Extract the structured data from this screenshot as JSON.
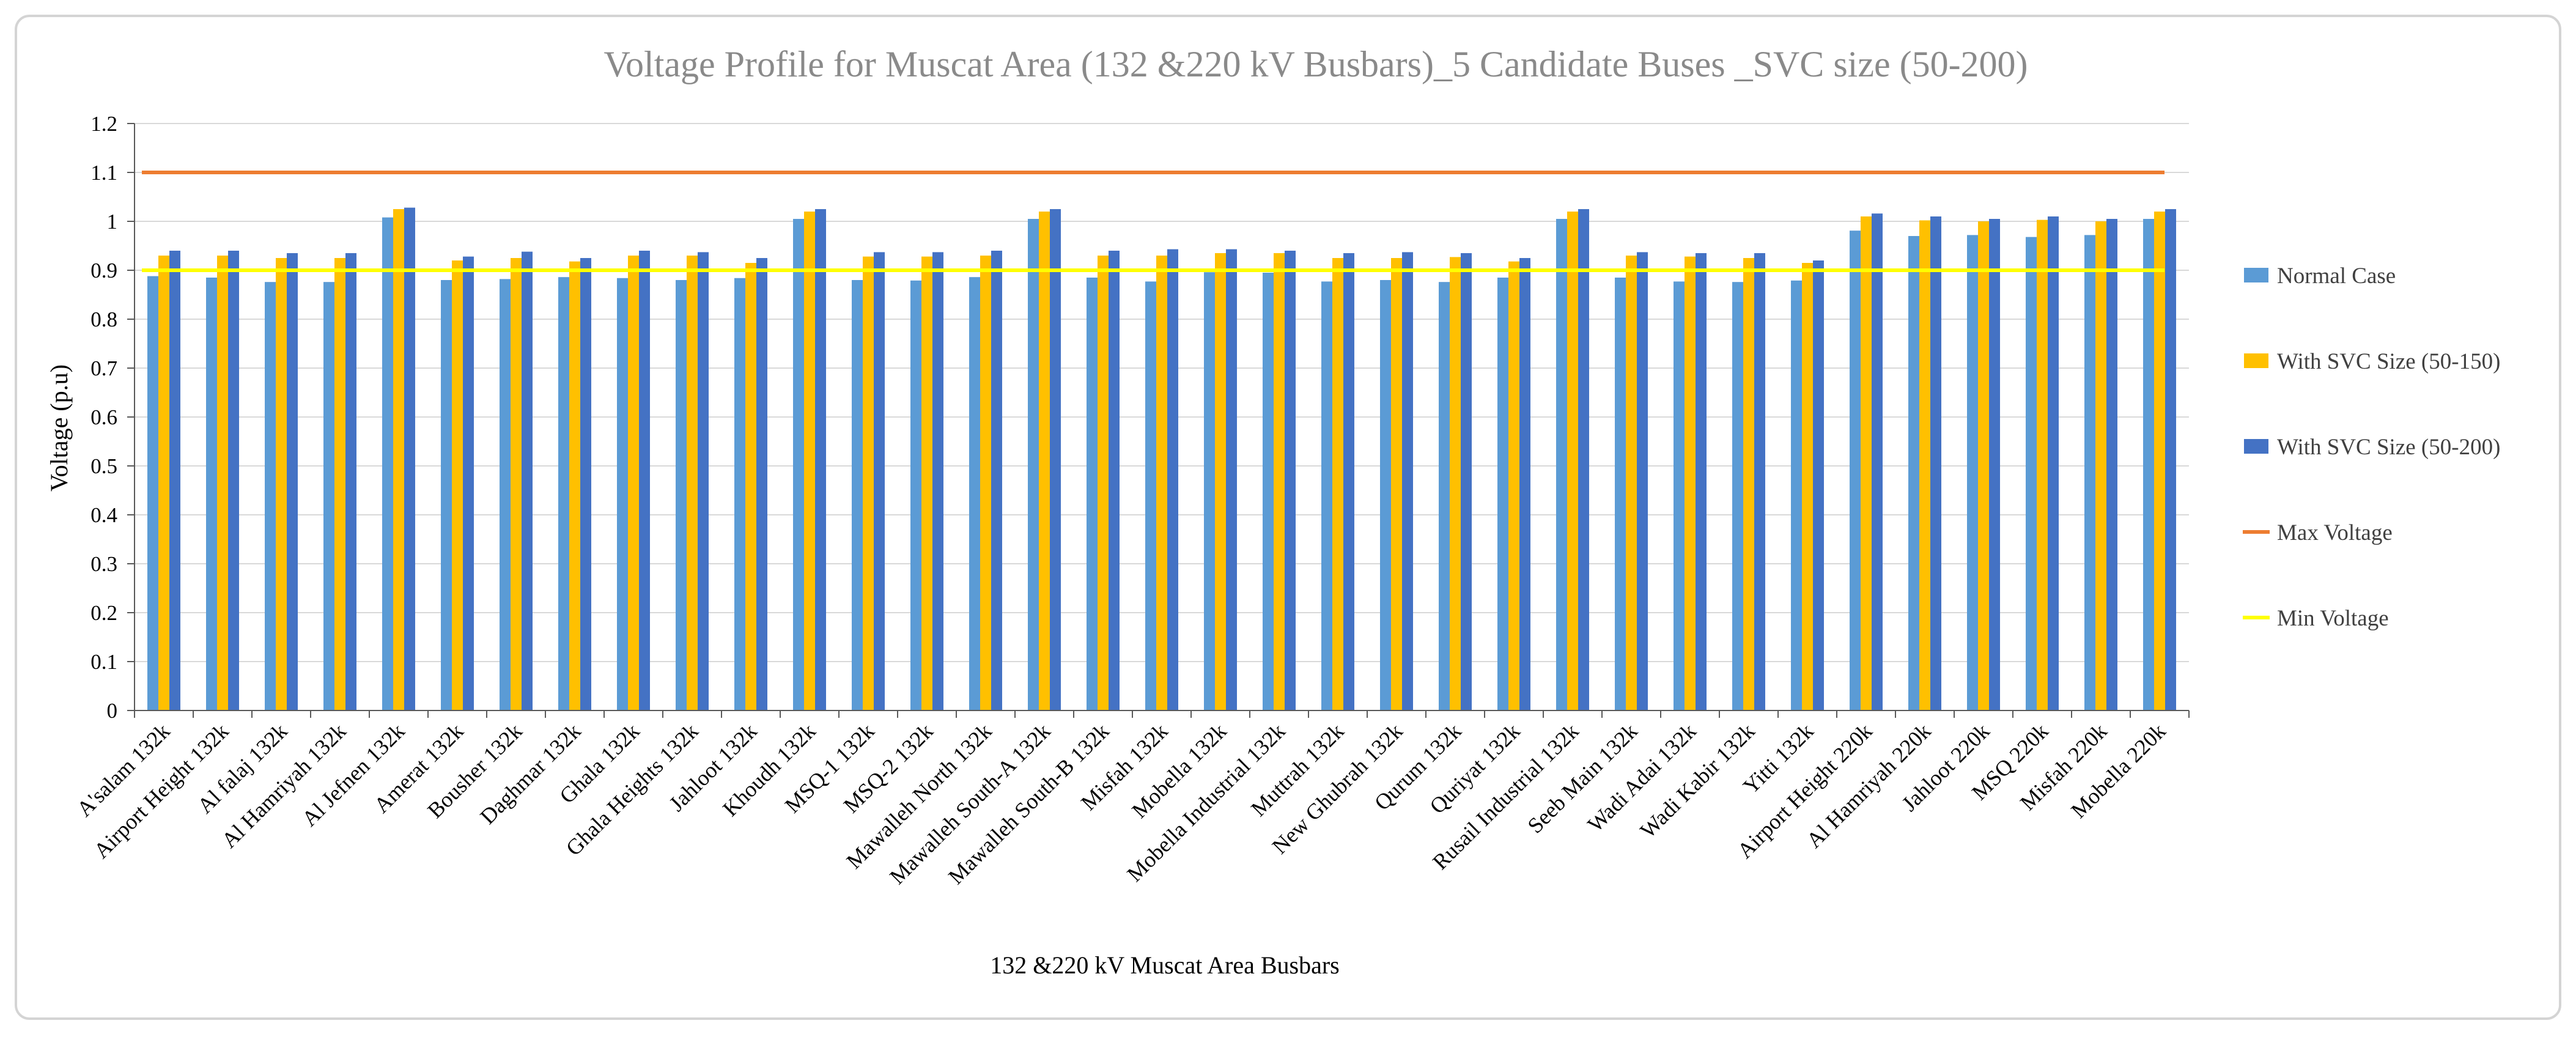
{
  "chart_data": {
    "type": "bar",
    "title": "Voltage Profile for Muscat Area (132 &220 kV  Busbars)_5 Candidate Buses _SVC size (50-200)",
    "xlabel": "132 &220 kV Muscat Area Busbars",
    "ylabel": "Voltage (p.u)",
    "ylim": [
      0,
      1.2
    ],
    "ytick_step": 0.1,
    "yticks": [
      "0",
      "0.1",
      "0.2",
      "0.3",
      "0.4",
      "0.5",
      "0.6",
      "0.7",
      "0.8",
      "0.9",
      "1",
      "1.1",
      "1.2"
    ],
    "grid": true,
    "legend_position": "right",
    "categories": [
      "A'salam 132k",
      "Airport Height 132k",
      "Al falaj 132k",
      "Al Hamriyah 132k",
      "Al Jefnen 132k",
      "Amerat 132k",
      "Bousher 132k",
      "Daghmar 132k",
      "Ghala 132k",
      "Ghala Heights 132k",
      "Jahloot 132k",
      "Khoudh 132k",
      "MSQ-1 132k",
      "MSQ-2 132k",
      "Mawalleh North 132k",
      "Mawalleh South-A 132k",
      "Mawalleh South-B 132k",
      "Misfah 132k",
      "Mobella 132k",
      "Mobella Industrial 132k",
      "Muttrah 132k",
      "New Ghubrah 132k",
      "Qurum 132k",
      "Quriyat 132k",
      "Rusail Industrial 132k",
      "Seeb Main 132k",
      "Wadi Adai 132k",
      "Wadi Kabir 132k",
      "Yitti 132k",
      "Airport Height 220k",
      "Al Hamriyah 220k",
      "Jahloot 220k",
      "MSQ 220k",
      "Misfah 220k",
      "Mobella 220k"
    ],
    "series": [
      {
        "name": "Normal Case",
        "color": "#5b9bd5",
        "values": [
          0.888,
          0.885,
          0.876,
          0.876,
          1.008,
          0.88,
          0.882,
          0.886,
          0.884,
          0.88,
          0.884,
          1.005,
          0.88,
          0.879,
          0.886,
          1.005,
          0.885,
          0.877,
          0.896,
          0.895,
          0.877,
          0.88,
          0.876,
          0.885,
          1.005,
          0.885,
          0.877,
          0.876,
          0.879,
          0.981,
          0.97,
          0.972,
          0.968,
          0.972,
          1.005
        ]
      },
      {
        "name": "With SVC Size (50-150)",
        "color": "#ffc000",
        "values": [
          0.93,
          0.93,
          0.925,
          0.925,
          1.025,
          0.92,
          0.925,
          0.918,
          0.93,
          0.93,
          0.915,
          1.02,
          0.928,
          0.928,
          0.93,
          1.02,
          0.93,
          0.93,
          0.935,
          0.935,
          0.925,
          0.925,
          0.927,
          0.918,
          1.02,
          0.93,
          0.928,
          0.925,
          0.915,
          1.01,
          1.002,
          1.0,
          1.003,
          1.0,
          1.02
        ]
      },
      {
        "name": "With SVC Size (50-200)",
        "color": "#4472c4",
        "values": [
          0.94,
          0.94,
          0.935,
          0.935,
          1.028,
          0.928,
          0.938,
          0.925,
          0.94,
          0.937,
          0.925,
          1.025,
          0.937,
          0.937,
          0.94,
          1.025,
          0.94,
          0.943,
          0.943,
          0.94,
          0.935,
          0.937,
          0.935,
          0.925,
          1.025,
          0.937,
          0.935,
          0.935,
          0.92,
          1.016,
          1.01,
          1.005,
          1.01,
          1.005,
          1.025
        ]
      }
    ],
    "reference_lines": [
      {
        "name": "Max Voltage",
        "color": "#ed7d31",
        "value": 1.1
      },
      {
        "name": "Min Voltage",
        "color": "#ffff00",
        "value": 0.9
      }
    ]
  }
}
